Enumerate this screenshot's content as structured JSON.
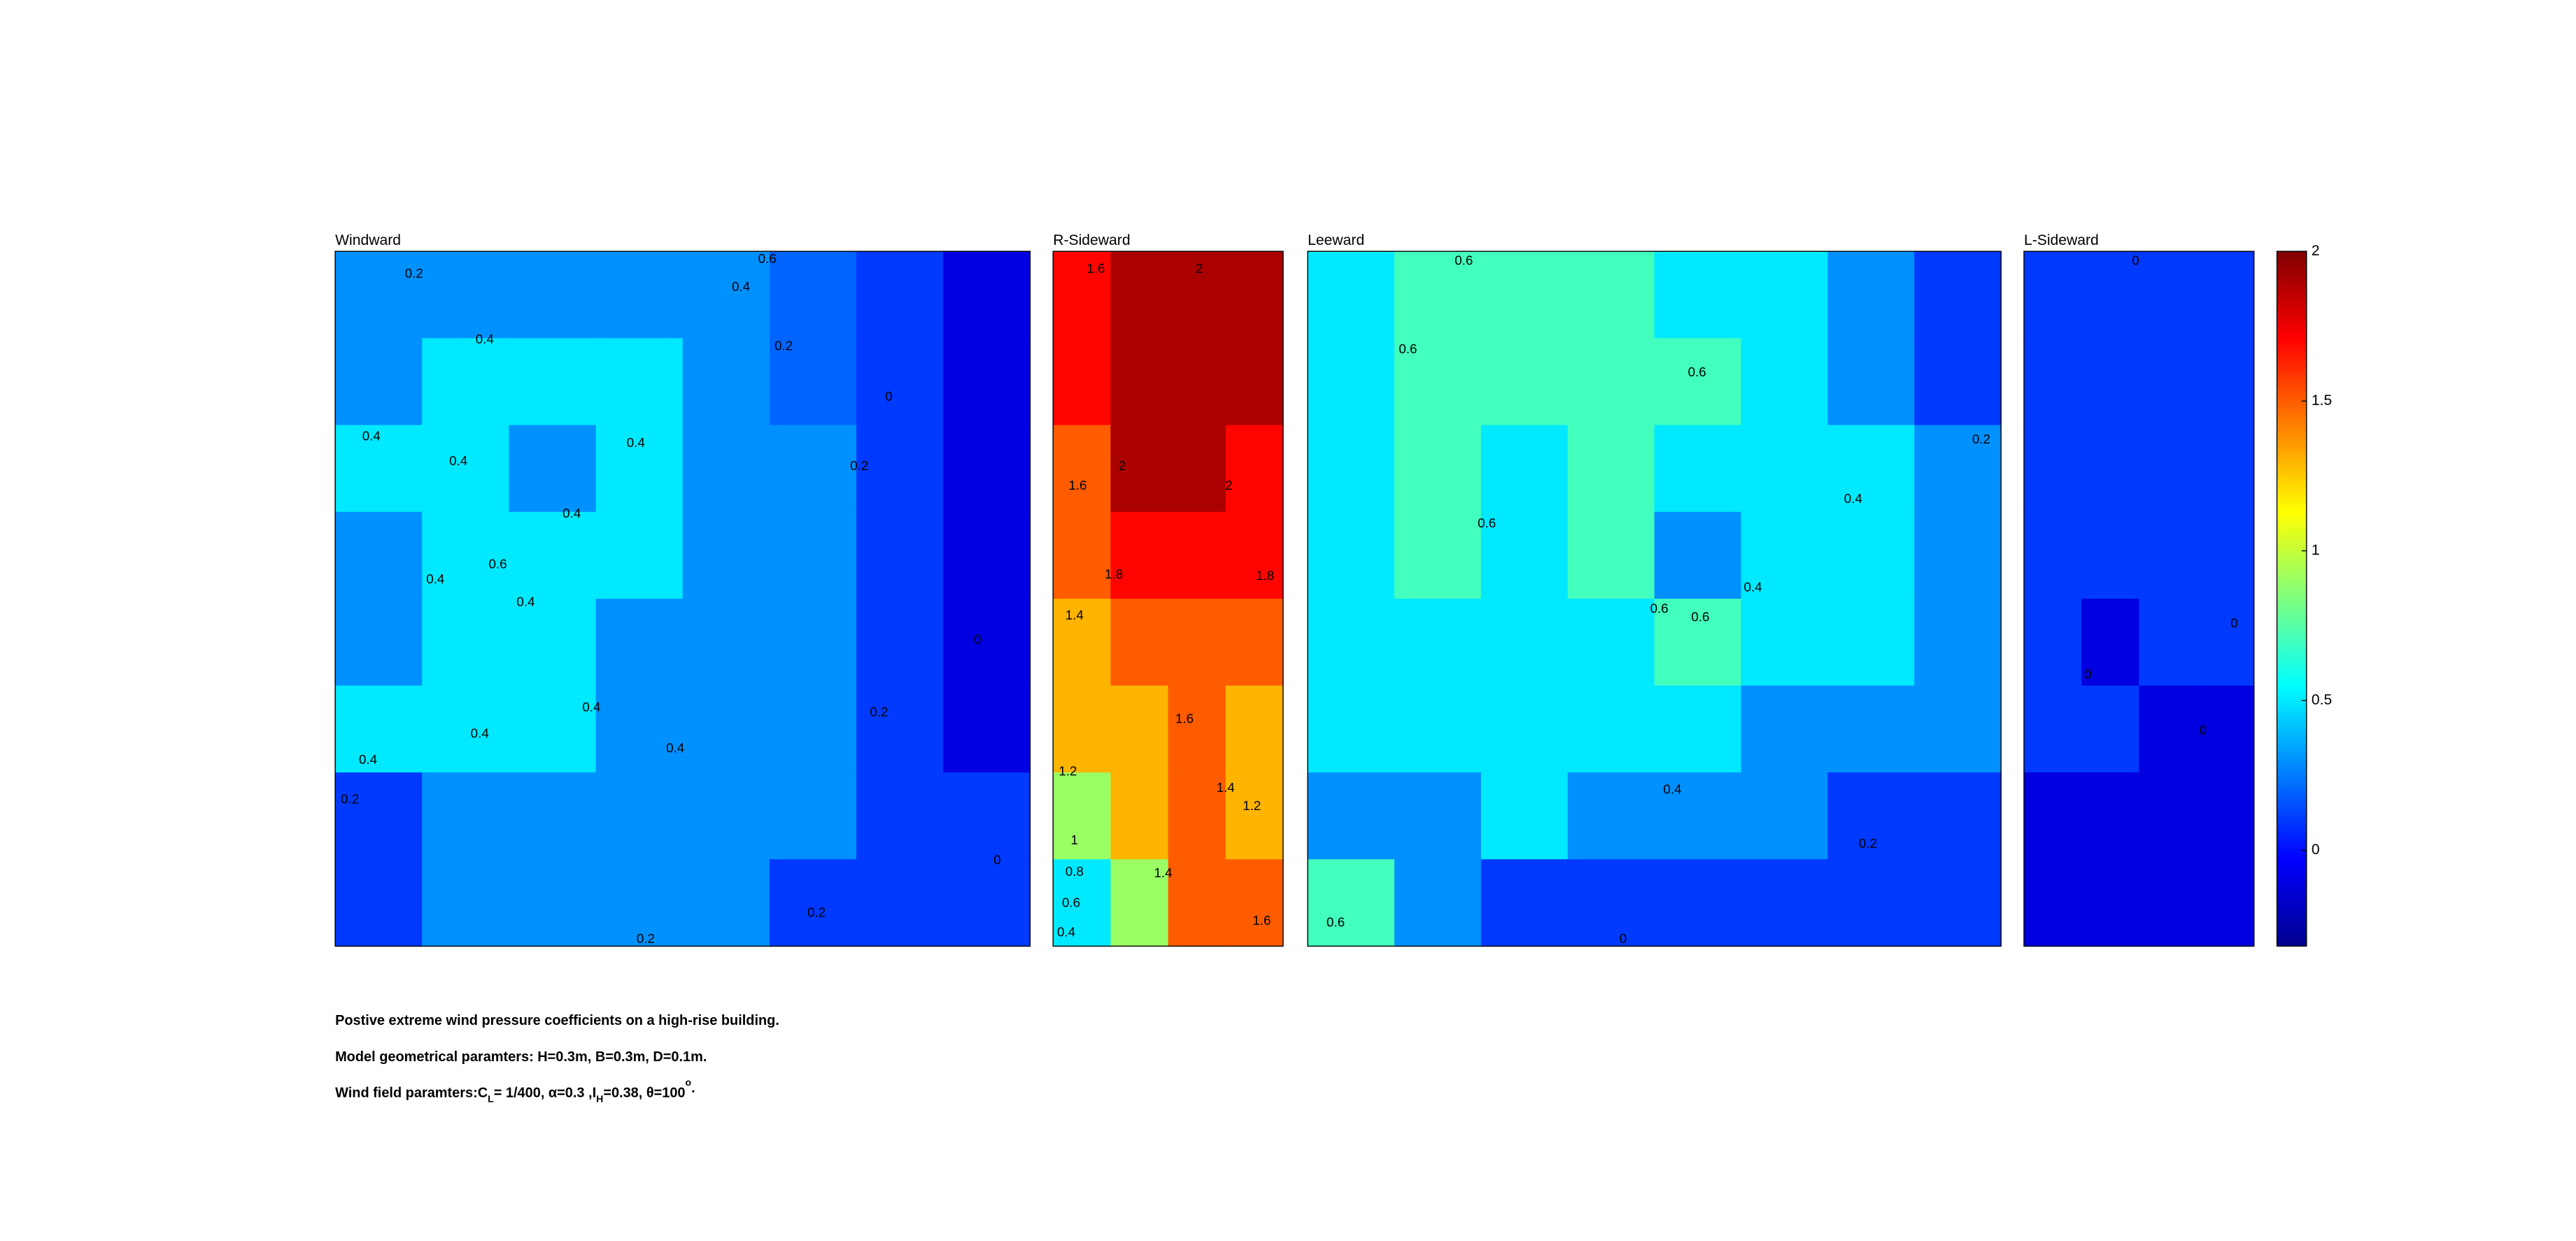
{
  "chart_data": {
    "type": "contour",
    "colormap": "jet",
    "clim": [
      -0.32,
      2
    ],
    "cticks": [
      0,
      0.5,
      1,
      1.5,
      2
    ],
    "panels": [
      {
        "title": "Windward",
        "grid": [
          [
            0.3,
            0.3,
            0.3,
            0.3,
            0.3,
            0.2,
            0.1,
            -0.1
          ],
          [
            0.3,
            0.5,
            0.5,
            0.5,
            0.3,
            0.2,
            0.1,
            -0.1
          ],
          [
            0.5,
            0.5,
            0.3,
            0.5,
            0.3,
            0.3,
            0.1,
            -0.1
          ],
          [
            0.3,
            0.5,
            0.5,
            0.5,
            0.3,
            0.3,
            0.1,
            -0.1
          ],
          [
            0.3,
            0.5,
            0.5,
            0.3,
            0.3,
            0.3,
            0.1,
            -0.1
          ],
          [
            0.5,
            0.5,
            0.5,
            0.3,
            0.3,
            0.3,
            0.1,
            -0.1
          ],
          [
            0.1,
            0.3,
            0.3,
            0.3,
            0.3,
            0.3,
            0.1,
            0.1
          ],
          [
            0.1,
            0.3,
            0.3,
            0.3,
            0.3,
            0.1,
            0.1,
            0.1
          ]
        ],
        "contour_labels": [
          0.2,
          0.6,
          0.4,
          0.2,
          0.4,
          0.4,
          0.4,
          0.4,
          0.2,
          0,
          0.4,
          0.6,
          0.4,
          0.4,
          0.4,
          0.4,
          0.4,
          0.2,
          0.4,
          0.2,
          0.2,
          0.2,
          0,
          0
        ]
      },
      {
        "title": "R-Sideward",
        "grid": [
          [
            1.7,
            1.9,
            1.9,
            1.9
          ],
          [
            1.7,
            1.9,
            1.9,
            1.9
          ],
          [
            1.5,
            1.9,
            1.9,
            1.7
          ],
          [
            1.5,
            1.7,
            1.7,
            1.7
          ],
          [
            1.3,
            1.5,
            1.5,
            1.5
          ],
          [
            1.3,
            1.3,
            1.5,
            1.3
          ],
          [
            0.9,
            1.3,
            1.5,
            1.3
          ],
          [
            0.5,
            0.9,
            1.5,
            1.5
          ]
        ],
        "contour_labels": [
          1.6,
          2,
          2,
          1.6,
          2,
          1.8,
          1.8,
          1.4,
          1.6,
          1.4,
          1.2,
          1.2,
          1,
          0.8,
          0.6,
          0.4,
          1.4,
          1.6
        ]
      },
      {
        "title": "Leeward",
        "grid": [
          [
            0.5,
            0.7,
            0.7,
            0.7,
            0.5,
            0.5,
            0.3,
            0.1
          ],
          [
            0.5,
            0.7,
            0.7,
            0.7,
            0.7,
            0.5,
            0.3,
            0.1
          ],
          [
            0.5,
            0.7,
            0.5,
            0.7,
            0.5,
            0.5,
            0.5,
            0.3
          ],
          [
            0.5,
            0.7,
            0.5,
            0.7,
            0.3,
            0.5,
            0.5,
            0.3
          ],
          [
            0.5,
            0.5,
            0.5,
            0.5,
            0.7,
            0.5,
            0.5,
            0.3
          ],
          [
            0.5,
            0.5,
            0.5,
            0.5,
            0.5,
            0.3,
            0.3,
            0.3
          ],
          [
            0.3,
            0.3,
            0.5,
            0.3,
            0.3,
            0.3,
            0.1,
            0.1
          ],
          [
            0.7,
            0.3,
            0.1,
            0.1,
            0.1,
            0.1,
            0.1,
            0.1
          ]
        ],
        "contour_labels": [
          0.6,
          0.6,
          0.6,
          0.2,
          0.4,
          0.6,
          0.4,
          0.6,
          0.6,
          0.4,
          0.2,
          0,
          0.6
        ]
      },
      {
        "title": "L-Sideward",
        "grid": [
          [
            0.1,
            0.1,
            0.1,
            0.1
          ],
          [
            0.1,
            0.1,
            0.1,
            0.1
          ],
          [
            0.1,
            0.1,
            0.1,
            0.1
          ],
          [
            0.1,
            0.1,
            0.1,
            0.1
          ],
          [
            0.1,
            -0.1,
            0.1,
            0.1
          ],
          [
            0.1,
            0.1,
            -0.1,
            -0.1
          ],
          [
            -0.1,
            -0.1,
            -0.1,
            -0.1
          ],
          [
            -0.1,
            -0.1,
            -0.1,
            -0.1
          ]
        ],
        "contour_labels": [
          0,
          0,
          0,
          0
        ]
      }
    ],
    "annotations": [
      [
        "Postive extreme  wind pressure coefficients on a high-rise building."
      ],
      [
        "Model geometrical paramters: H=0.3m, B=0.3m, D=0.1m."
      ],
      [
        "Wind field paramters:C",
        "L",
        "= 1/400, α=0.3 ,I",
        "H",
        "=0.38, θ=100",
        "o",
        "."
      ]
    ]
  }
}
